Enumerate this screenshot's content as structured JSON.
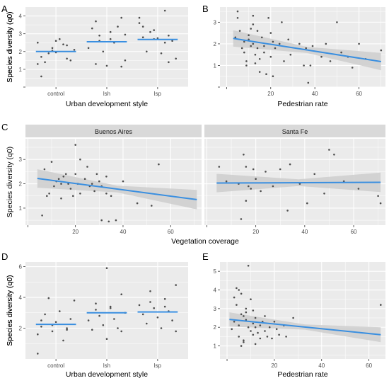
{
  "colors": {
    "panel_bg": "#ebebeb",
    "grid": "#ffffff",
    "point": "#4d4d4d",
    "fit_line": "#3a8fe0",
    "ribbon": "#cfcfcf",
    "strip_bg": "#d9d9d9",
    "axis_text": "#4d4d4d"
  },
  "chart_data": [
    {
      "id": "A",
      "type": "scatter",
      "panel_label": "A",
      "xlabel": "Urban development style",
      "ylabel": "Species diversity (q0)",
      "categories": [
        "control",
        "lsh",
        "lsp"
      ],
      "ylim": [
        0,
        4.5
      ],
      "yticks": [
        0,
        1,
        2,
        3,
        4
      ],
      "group_means": [
        2.0,
        2.55,
        2.68
      ],
      "points": [
        [
          0,
          2.5
        ],
        [
          0,
          2.2
        ],
        [
          0,
          2.35
        ],
        [
          0,
          1.7
        ],
        [
          0,
          2.6
        ],
        [
          0,
          1.5
        ],
        [
          0,
          1.4
        ],
        [
          0,
          2.7
        ],
        [
          0,
          2.1
        ],
        [
          0,
          1.9
        ],
        [
          0,
          2.4
        ],
        [
          0,
          1.3
        ],
        [
          0,
          2.05
        ],
        [
          0,
          1.6
        ],
        [
          0,
          0.6
        ],
        [
          0,
          1.95
        ],
        [
          1,
          3.9
        ],
        [
          1,
          3.7
        ],
        [
          1,
          3.1
        ],
        [
          1,
          2.95
        ],
        [
          1,
          2.6
        ],
        [
          1,
          2.5
        ],
        [
          1,
          2.2
        ],
        [
          1,
          2.0
        ],
        [
          1,
          3.4
        ],
        [
          1,
          3.3
        ],
        [
          1,
          1.2
        ],
        [
          1,
          1.15
        ],
        [
          1,
          1.3
        ],
        [
          1,
          2.7
        ],
        [
          1,
          1.5
        ],
        [
          1,
          2.9
        ],
        [
          2,
          4.3
        ],
        [
          2,
          3.9
        ],
        [
          2,
          3.2
        ],
        [
          2,
          2.9
        ],
        [
          2,
          2.8
        ],
        [
          2,
          2.75
        ],
        [
          2,
          2.6
        ],
        [
          2,
          2.0
        ],
        [
          2,
          1.9
        ],
        [
          2,
          1.6
        ],
        [
          2,
          3.1
        ],
        [
          2,
          2.5
        ],
        [
          2,
          3.6
        ],
        [
          2,
          2.7
        ],
        [
          2,
          1.4
        ],
        [
          2,
          3.4
        ]
      ]
    },
    {
      "id": "B",
      "type": "scatter",
      "panel_label": "B",
      "xlabel": "Pedestrian rate",
      "ylabel": "Species diversity (q0)",
      "xlim": [
        -3,
        72
      ],
      "ylim": [
        0,
        3.7
      ],
      "xticks": [
        0,
        20,
        40,
        60
      ],
      "yticks": [
        0,
        1,
        2,
        3
      ],
      "fit": {
        "x0": 3,
        "y0": 2.25,
        "x1": 70,
        "y1": 1.18
      },
      "points": [
        [
          5,
          3.5
        ],
        [
          5,
          3.2
        ],
        [
          4,
          2.3
        ],
        [
          6,
          2.6
        ],
        [
          7,
          1.8
        ],
        [
          8,
          2.1
        ],
        [
          8,
          1.6
        ],
        [
          9,
          1.2
        ],
        [
          9,
          1.0
        ],
        [
          10,
          2.4
        ],
        [
          10,
          2.2
        ],
        [
          11,
          2.7
        ],
        [
          11,
          1.9
        ],
        [
          12,
          3.3
        ],
        [
          12,
          2.9
        ],
        [
          12,
          2.0
        ],
        [
          13,
          1.5
        ],
        [
          13,
          1.1
        ],
        [
          14,
          2.6
        ],
        [
          14,
          1.8
        ],
        [
          15,
          0.7
        ],
        [
          15,
          1.3
        ],
        [
          16,
          2.3
        ],
        [
          17,
          1.9
        ],
        [
          17,
          1.6
        ],
        [
          18,
          0.6
        ],
        [
          19,
          3.2
        ],
        [
          20,
          2.5
        ],
        [
          20,
          1.4
        ],
        [
          21,
          2.1
        ],
        [
          21,
          0.5
        ],
        [
          22,
          1.8
        ],
        [
          24,
          2.0
        ],
        [
          25,
          3.0
        ],
        [
          26,
          1.2
        ],
        [
          28,
          2.2
        ],
        [
          29,
          1.5
        ],
        [
          33,
          2.0
        ],
        [
          35,
          1.0
        ],
        [
          36,
          1.8
        ],
        [
          37,
          0.2
        ],
        [
          38,
          1.0
        ],
        [
          39,
          1.9
        ],
        [
          43,
          1.4
        ],
        [
          45,
          2.0
        ],
        [
          47,
          1.2
        ],
        [
          50,
          3.0
        ],
        [
          52,
          1.6
        ],
        [
          55,
          1.4
        ],
        [
          57,
          0.9
        ],
        [
          60,
          2.0
        ],
        [
          63,
          1.3
        ],
        [
          70,
          1.7
        ]
      ]
    },
    {
      "id": "C1",
      "type": "scatter",
      "panel_label": "C",
      "strip": "Buenos Aires",
      "xlabel": "Vegetation coverage",
      "ylabel": "Species diversity (q0)",
      "xlim": [
        -1,
        73
      ],
      "ylim": [
        0.3,
        3.85
      ],
      "xticks": [
        0,
        20,
        40,
        60
      ],
      "yticks": [
        1,
        2,
        3
      ],
      "fit": {
        "x0": 4,
        "y0": 2.22,
        "x1": 71,
        "y1": 1.35
      },
      "points": [
        [
          6,
          0.7
        ],
        [
          7,
          2.6
        ],
        [
          8,
          1.5
        ],
        [
          9,
          1.6
        ],
        [
          10,
          2.9
        ],
        [
          11,
          1.9
        ],
        [
          12,
          2.1
        ],
        [
          13,
          2.2
        ],
        [
          14,
          2.0
        ],
        [
          14,
          1.4
        ],
        [
          15,
          2.3
        ],
        [
          16,
          2.4
        ],
        [
          17,
          2.0
        ],
        [
          18,
          1.8
        ],
        [
          19,
          1.5
        ],
        [
          20,
          3.6
        ],
        [
          20,
          2.4
        ],
        [
          21,
          2.0
        ],
        [
          22,
          1.6
        ],
        [
          22,
          3.0
        ],
        [
          24,
          2.2
        ],
        [
          25,
          2.7
        ],
        [
          26,
          1.9
        ],
        [
          27,
          2.0
        ],
        [
          28,
          1.7
        ],
        [
          29,
          2.4
        ],
        [
          30,
          2.1
        ],
        [
          31,
          0.5
        ],
        [
          33,
          1.6
        ],
        [
          34,
          0.45
        ],
        [
          35,
          1.5
        ],
        [
          37,
          0.5
        ],
        [
          40,
          2.1
        ],
        [
          46,
          1.2
        ],
        [
          55,
          2.8
        ],
        [
          52,
          1.1
        ],
        [
          31,
          1.9
        ],
        [
          33,
          2.3
        ]
      ]
    },
    {
      "id": "C2",
      "type": "scatter",
      "strip": "Santa Fe",
      "xlabel": "Vegetation coverage",
      "xlim": [
        -1,
        73
      ],
      "ylim": [
        0.3,
        3.85
      ],
      "xticks": [
        0,
        20,
        40,
        60
      ],
      "yticks": [
        1,
        2,
        3
      ],
      "fit": {
        "x0": 4,
        "y0": 2.03,
        "x1": 71,
        "y1": 2.06
      },
      "points": [
        [
          5,
          2.7
        ],
        [
          8,
          2.1
        ],
        [
          13,
          2.0
        ],
        [
          14,
          0.55
        ],
        [
          15,
          3.2
        ],
        [
          16,
          1.3
        ],
        [
          16,
          2.7
        ],
        [
          17,
          1.9
        ],
        [
          18,
          1.8
        ],
        [
          19,
          2.6
        ],
        [
          20,
          2.2
        ],
        [
          22,
          1.7
        ],
        [
          24,
          2.5
        ],
        [
          27,
          1.9
        ],
        [
          30,
          2.6
        ],
        [
          34,
          2.8
        ],
        [
          38,
          2.0
        ],
        [
          41,
          1.2
        ],
        [
          44,
          2.4
        ],
        [
          48,
          1.6
        ],
        [
          50,
          3.4
        ],
        [
          52,
          3.2
        ],
        [
          56,
          2.1
        ],
        [
          62,
          1.8
        ],
        [
          70,
          1.5
        ],
        [
          71,
          1.2
        ],
        [
          33,
          0.9
        ]
      ]
    },
    {
      "id": "D",
      "type": "scatter",
      "panel_label": "D",
      "xlabel": "Urban development style",
      "ylabel": "Species diversity (q0)",
      "categories": [
        "control",
        "lsh",
        "lsp"
      ],
      "ylim": [
        0,
        6.3
      ],
      "yticks": [
        2,
        4,
        6
      ],
      "group_means": [
        2.25,
        3.0,
        3.05
      ],
      "points": [
        [
          0,
          1.6
        ],
        [
          0,
          1.8
        ],
        [
          0,
          1.9
        ],
        [
          0,
          2.1
        ],
        [
          0,
          2.4
        ],
        [
          0,
          2.6
        ],
        [
          0,
          2.9
        ],
        [
          0,
          3.1
        ],
        [
          0,
          3.8
        ],
        [
          0,
          3.95
        ],
        [
          0,
          1.2
        ],
        [
          0,
          0.35
        ],
        [
          0,
          2.2
        ],
        [
          0,
          2.0
        ],
        [
          0,
          2.5
        ],
        [
          1,
          5.9
        ],
        [
          1,
          4.2
        ],
        [
          1,
          3.6
        ],
        [
          1,
          3.4
        ],
        [
          1,
          3.0
        ],
        [
          1,
          2.8
        ],
        [
          1,
          2.6
        ],
        [
          1,
          2.5
        ],
        [
          1,
          2.2
        ],
        [
          1,
          2.0
        ],
        [
          1,
          1.9
        ],
        [
          1,
          1.3
        ],
        [
          1,
          1.8
        ],
        [
          1,
          3.2
        ],
        [
          1,
          3.3
        ],
        [
          2,
          4.8
        ],
        [
          2,
          4.4
        ],
        [
          2,
          3.9
        ],
        [
          2,
          3.5
        ],
        [
          2,
          3.3
        ],
        [
          2,
          3.1
        ],
        [
          2,
          2.9
        ],
        [
          2,
          2.7
        ],
        [
          2,
          2.5
        ],
        [
          2,
          2.3
        ],
        [
          2,
          2.0
        ],
        [
          2,
          1.8
        ],
        [
          2,
          3.7
        ],
        [
          2,
          3.4
        ]
      ]
    },
    {
      "id": "E",
      "type": "scatter",
      "panel_label": "E",
      "xlabel": "Pedestrian rate",
      "ylabel": "Species diversity (q0)",
      "xlim": [
        -3,
        67
      ],
      "ylim": [
        0.3,
        5.5
      ],
      "xticks": [
        0,
        20,
        40,
        60
      ],
      "yticks": [
        1,
        2,
        3,
        4,
        5
      ],
      "fit": {
        "x0": 1,
        "y0": 2.42,
        "x1": 65,
        "y1": 1.6
      },
      "points": [
        [
          2,
          1.9
        ],
        [
          3,
          2.3
        ],
        [
          4,
          4.1
        ],
        [
          4,
          3.2
        ],
        [
          5,
          2.1
        ],
        [
          5,
          1.5
        ],
        [
          6,
          2.7
        ],
        [
          6,
          3.8
        ],
        [
          7,
          2.6
        ],
        [
          7,
          1.3
        ],
        [
          8,
          3.0
        ],
        [
          8,
          2.4
        ],
        [
          9,
          5.3
        ],
        [
          9,
          2.0
        ],
        [
          10,
          1.8
        ],
        [
          10,
          3.5
        ],
        [
          11,
          2.2
        ],
        [
          11,
          1.6
        ],
        [
          12,
          2.0
        ],
        [
          12,
          2.5
        ],
        [
          13,
          1.7
        ],
        [
          14,
          2.1
        ],
        [
          14,
          1.4
        ],
        [
          15,
          2.3
        ],
        [
          16,
          1.8
        ],
        [
          16,
          2.6
        ],
        [
          17,
          1.5
        ],
        [
          18,
          2.0
        ],
        [
          19,
          1.4
        ],
        [
          20,
          2.3
        ],
        [
          21,
          1.9
        ],
        [
          22,
          1.6
        ],
        [
          24,
          2.1
        ],
        [
          25,
          1.5
        ],
        [
          28,
          2.5
        ],
        [
          6,
          1.0
        ],
        [
          7,
          1.2
        ],
        [
          12,
          1.1
        ],
        [
          8,
          2.8
        ],
        [
          3,
          3.6
        ],
        [
          5,
          4.0
        ],
        [
          11,
          2.9
        ],
        [
          65,
          3.2
        ]
      ]
    }
  ]
}
